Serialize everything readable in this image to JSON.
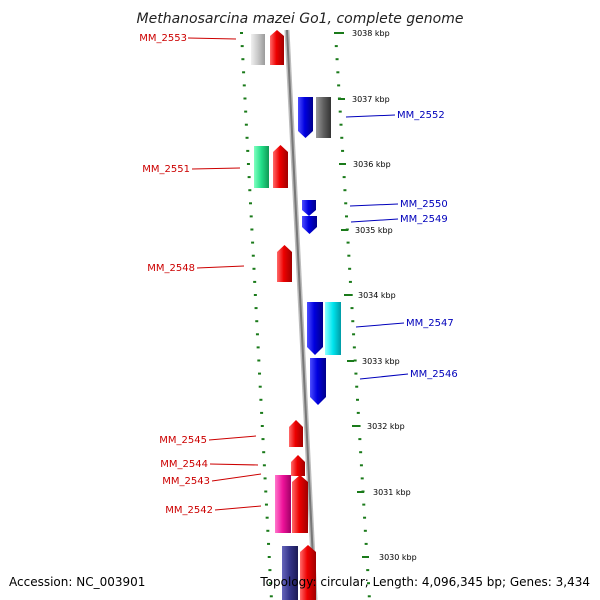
{
  "title": "Methanosarcina mazei Go1, complete genome",
  "footer": {
    "accession": "Accession: NC_003901",
    "summary": "Topology: circular; Length: 4,096,345 bp; Genes: 3,434"
  },
  "colors": {
    "backbone": "#8a8a8a",
    "tick": "#1a7a1a",
    "label_left": "#cc0000",
    "label_right": "#0000bb"
  },
  "kbp_labels": [
    "3038 kbp",
    "3037 kbp",
    "3036 kbp",
    "3035 kbp",
    "3034 kbp",
    "3033 kbp",
    "3032 kbp",
    "3031 kbp",
    "3030 kbp"
  ],
  "gene_labels": [
    {
      "name": "MM_2553",
      "side": "left"
    },
    {
      "name": "MM_2552",
      "side": "right"
    },
    {
      "name": "MM_2551",
      "side": "left"
    },
    {
      "name": "MM_2550",
      "side": "right"
    },
    {
      "name": "MM_2549",
      "side": "right"
    },
    {
      "name": "MM_2548",
      "side": "left"
    },
    {
      "name": "MM_2547",
      "side": "right"
    },
    {
      "name": "MM_2546",
      "side": "right"
    },
    {
      "name": "MM_2545",
      "side": "left"
    },
    {
      "name": "MM_2544",
      "side": "left"
    },
    {
      "name": "MM_2543",
      "side": "left"
    },
    {
      "name": "MM_2542",
      "side": "left"
    }
  ],
  "gene_colors": {
    "gray_light": "#c8c8c8",
    "red": "#ee0000",
    "blue": "#0000e0",
    "gray_dark": "#606060",
    "green": "#22dd88",
    "cyan": "#00e5ee",
    "pink": "#ee1199",
    "purple": "#333388"
  }
}
